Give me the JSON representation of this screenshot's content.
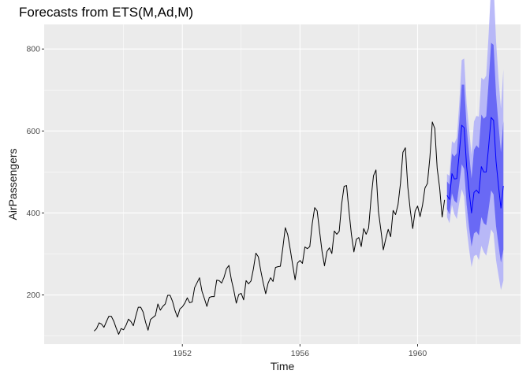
{
  "chart_data": {
    "type": "line",
    "title": "Forecasts from ETS(M,Ad,M)",
    "xlabel": "Time",
    "ylabel": "AirPassengers",
    "x_ticks": [
      1952,
      1956,
      1960
    ],
    "y_ticks": [
      200,
      400,
      600,
      800
    ],
    "xlim": [
      1947.3,
      1963.5
    ],
    "ylim": [
      80,
      860
    ],
    "grid": true,
    "legend": "none",
    "colors": {
      "panel": "#ebebeb",
      "grid": "#ffffff",
      "history": "#000000",
      "forecast": "#0000ff",
      "pi80": "#5b5bf5",
      "pi95": "#b3b3f8"
    },
    "series": [
      {
        "name": "",
        "start": 1949.0,
        "frequency": 12,
        "values": [
          112,
          118,
          132,
          129,
          121,
          135,
          148,
          148,
          136,
          119,
          104,
          118,
          115,
          126,
          141,
          135,
          125,
          149,
          170,
          170,
          158,
          133,
          114,
          140,
          145,
          150,
          178,
          163,
          172,
          178,
          199,
          199,
          184,
          162,
          146,
          166,
          171,
          180,
          193,
          181,
          183,
          218,
          230,
          242,
          209,
          191,
          172,
          194,
          196,
          196,
          236,
          235,
          229,
          243,
          264,
          272,
          237,
          211,
          180,
          201,
          204,
          188,
          235,
          227,
          234,
          264,
          302,
          293,
          259,
          229,
          203,
          229,
          242,
          233,
          267,
          269,
          270,
          315,
          364,
          347,
          312,
          274,
          237,
          278,
          284,
          277,
          317,
          313,
          318,
          374,
          413,
          405,
          355,
          306,
          271,
          306,
          315,
          301,
          356,
          348,
          355,
          422,
          465,
          467,
          404,
          347,
          305,
          336,
          340,
          318,
          362,
          348,
          363,
          435,
          491,
          505,
          404,
          359,
          310,
          337,
          360,
          342,
          406,
          396,
          420,
          472,
          548,
          559,
          463,
          407,
          362,
          405,
          417,
          391,
          419,
          461,
          472,
          535,
          622,
          606,
          508,
          461,
          390,
          432
        ]
      },
      {
        "name": "",
        "start": 1961.0,
        "frequency": 12,
        "values": [
          443,
          433,
          496,
          483,
          484,
          546,
          614,
          608,
          513,
          454,
          400,
          450,
          456,
          448,
          513,
          500,
          500,
          563,
          633,
          626,
          527,
          466,
          412,
          466
        ],
        "lo80": [
          410,
          397,
          448,
          430,
          424,
          470,
          519,
          507,
          421,
          366,
          318,
          350,
          355,
          345,
          390,
          375,
          370,
          410,
          455,
          445,
          368,
          322,
          279,
          310
        ],
        "hi80": [
          477,
          469,
          545,
          538,
          546,
          623,
          713,
          713,
          609,
          545,
          484,
          554,
          565,
          558,
          640,
          630,
          636,
          722,
          815,
          810,
          690,
          615,
          548,
          625
        ],
        "lo95": [
          390,
          375,
          420,
          397,
          385,
          425,
          458,
          440,
          362,
          312,
          268,
          295,
          298,
          285,
          320,
          305,
          296,
          325,
          360,
          350,
          285,
          248,
          212,
          235
        ],
        "hi95": [
          495,
          491,
          575,
          570,
          583,
          668,
          773,
          777,
          668,
          605,
          542,
          623,
          637,
          635,
          730,
          725,
          735,
          838,
          955,
          960,
          820,
          730,
          655,
          750
        ]
      }
    ]
  }
}
